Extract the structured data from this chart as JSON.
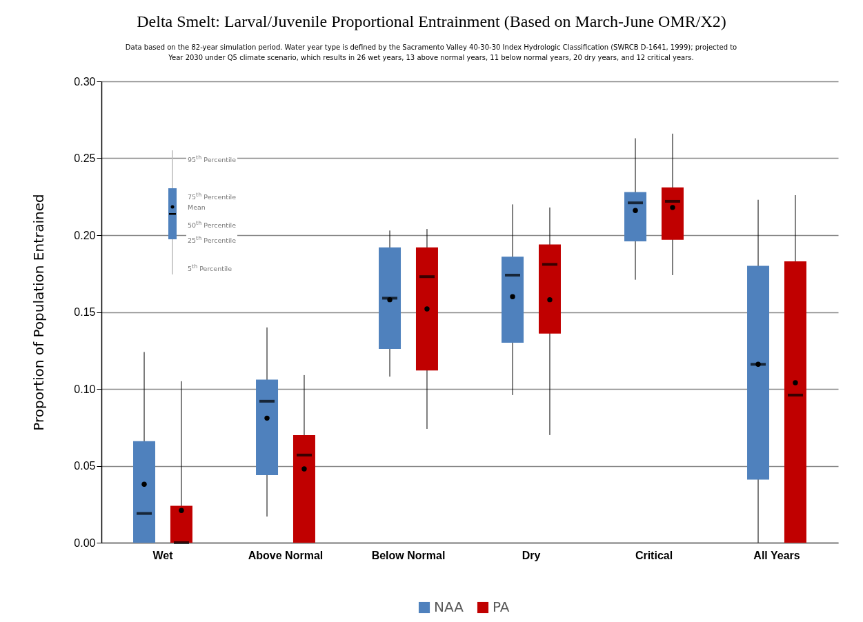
{
  "chart_data": {
    "type": "box",
    "title": "Delta Smelt: Larval/Juvenile Proportional Entrainment (Based on March-June OMR/X2)",
    "subtitle": "Data based on the 82-year simulation period.  Water year type is defined by the Sacramento Valley 40-30-30 Index Hydrologic Classification (SWRCB D-1641, 1999); projected to Year 2030 under Q5 climate scenario, which results in 26 wet years, 13 above normal years, 11 below normal years, 20 dry years, and 12 critical years.",
    "ylabel": "Proportion of Population Entrained",
    "categories": [
      "Wet",
      "Above Normal",
      "Below Normal",
      "Dry",
      "Critical",
      "All Years"
    ],
    "series": [
      {
        "name": "NAA",
        "color": "#4f81bd",
        "boxes": [
          {
            "low": 0,
            "q1": 0,
            "median": 0.019,
            "q3": 0.066,
            "high": 0.124,
            "mean": 0.038
          },
          {
            "low": 0.017,
            "q1": 0.044,
            "median": 0.092,
            "q3": 0.106,
            "high": 0.14,
            "mean": 0.081
          },
          {
            "low": 0.108,
            "q1": 0.126,
            "median": 0.159,
            "q3": 0.192,
            "high": 0.203,
            "mean": 0.158
          },
          {
            "low": 0.096,
            "q1": 0.13,
            "median": 0.174,
            "q3": 0.186,
            "high": 0.22,
            "mean": 0.16
          },
          {
            "low": 0.171,
            "q1": 0.196,
            "median": 0.221,
            "q3": 0.228,
            "high": 0.263,
            "mean": 0.216
          },
          {
            "low": 0,
            "q1": 0.041,
            "median": 0.116,
            "q3": 0.18,
            "high": 0.223,
            "mean": 0.116
          }
        ]
      },
      {
        "name": "PA",
        "color": "#c00000",
        "boxes": [
          {
            "low": 0,
            "q1": 0,
            "median": 0,
            "q3": 0.024,
            "high": 0.105,
            "mean": 0.021
          },
          {
            "low": 0,
            "q1": 0,
            "median": 0.057,
            "q3": 0.07,
            "high": 0.109,
            "mean": 0.048
          },
          {
            "low": 0.074,
            "q1": 0.112,
            "median": 0.173,
            "q3": 0.192,
            "high": 0.204,
            "mean": 0.152
          },
          {
            "low": 0.07,
            "q1": 0.136,
            "median": 0.181,
            "q3": 0.194,
            "high": 0.218,
            "mean": 0.158
          },
          {
            "low": 0.174,
            "q1": 0.197,
            "median": 0.222,
            "q3": 0.231,
            "high": 0.266,
            "mean": 0.218
          },
          {
            "low": 0,
            "q1": 0,
            "median": 0.096,
            "q3": 0.183,
            "high": 0.226,
            "mean": 0.104
          }
        ]
      }
    ],
    "ylim": [
      0,
      0.3
    ],
    "yticks": [
      {
        "value": 0,
        "label": "0.00"
      },
      0.05,
      {
        "value": 0.1,
        "label": "0.10"
      },
      0.15,
      {
        "value": 0.2,
        "label": "0.20"
      },
      0.25,
      {
        "value": 0.3,
        "label": "0.30"
      }
    ],
    "grid": "y",
    "legend": "bottom",
    "annotations": [
      "95$^{th}$ Percentile",
      "75$^{th}$ Percentile",
      "Mean",
      "50$^{th}$ Percentile",
      "25$^{th}$ Percentile",
      "5$^{th}$ Percentile"
    ]
  }
}
